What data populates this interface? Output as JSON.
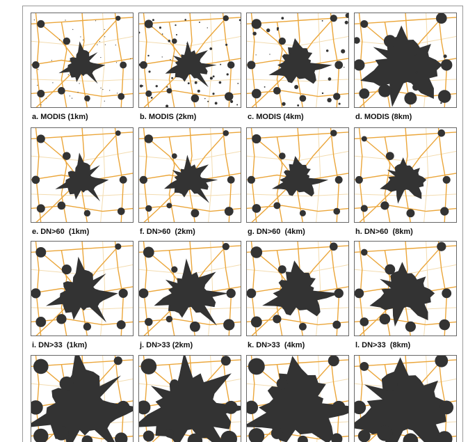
{
  "panels": [
    {
      "label": "a. MODIS (1km)"
    },
    {
      "label": "b. MODIS (2km)"
    },
    {
      "label": "c. MODIS (4km)"
    },
    {
      "label": "d. MODIS (8km)"
    },
    {
      "label": "e. DN>60  (1km)"
    },
    {
      "label": "f. DN>60  (2km)"
    },
    {
      "label": "g. DN>60  (4km)"
    },
    {
      "label": "h. DN>60  (8km)"
    },
    {
      "label": "i. DN>33  (1km)"
    },
    {
      "label": "j. DN>33 (2km)"
    },
    {
      "label": "k. DN>33  (4km)"
    },
    {
      "label": "l. DN>33  (8km)"
    }
  ]
}
